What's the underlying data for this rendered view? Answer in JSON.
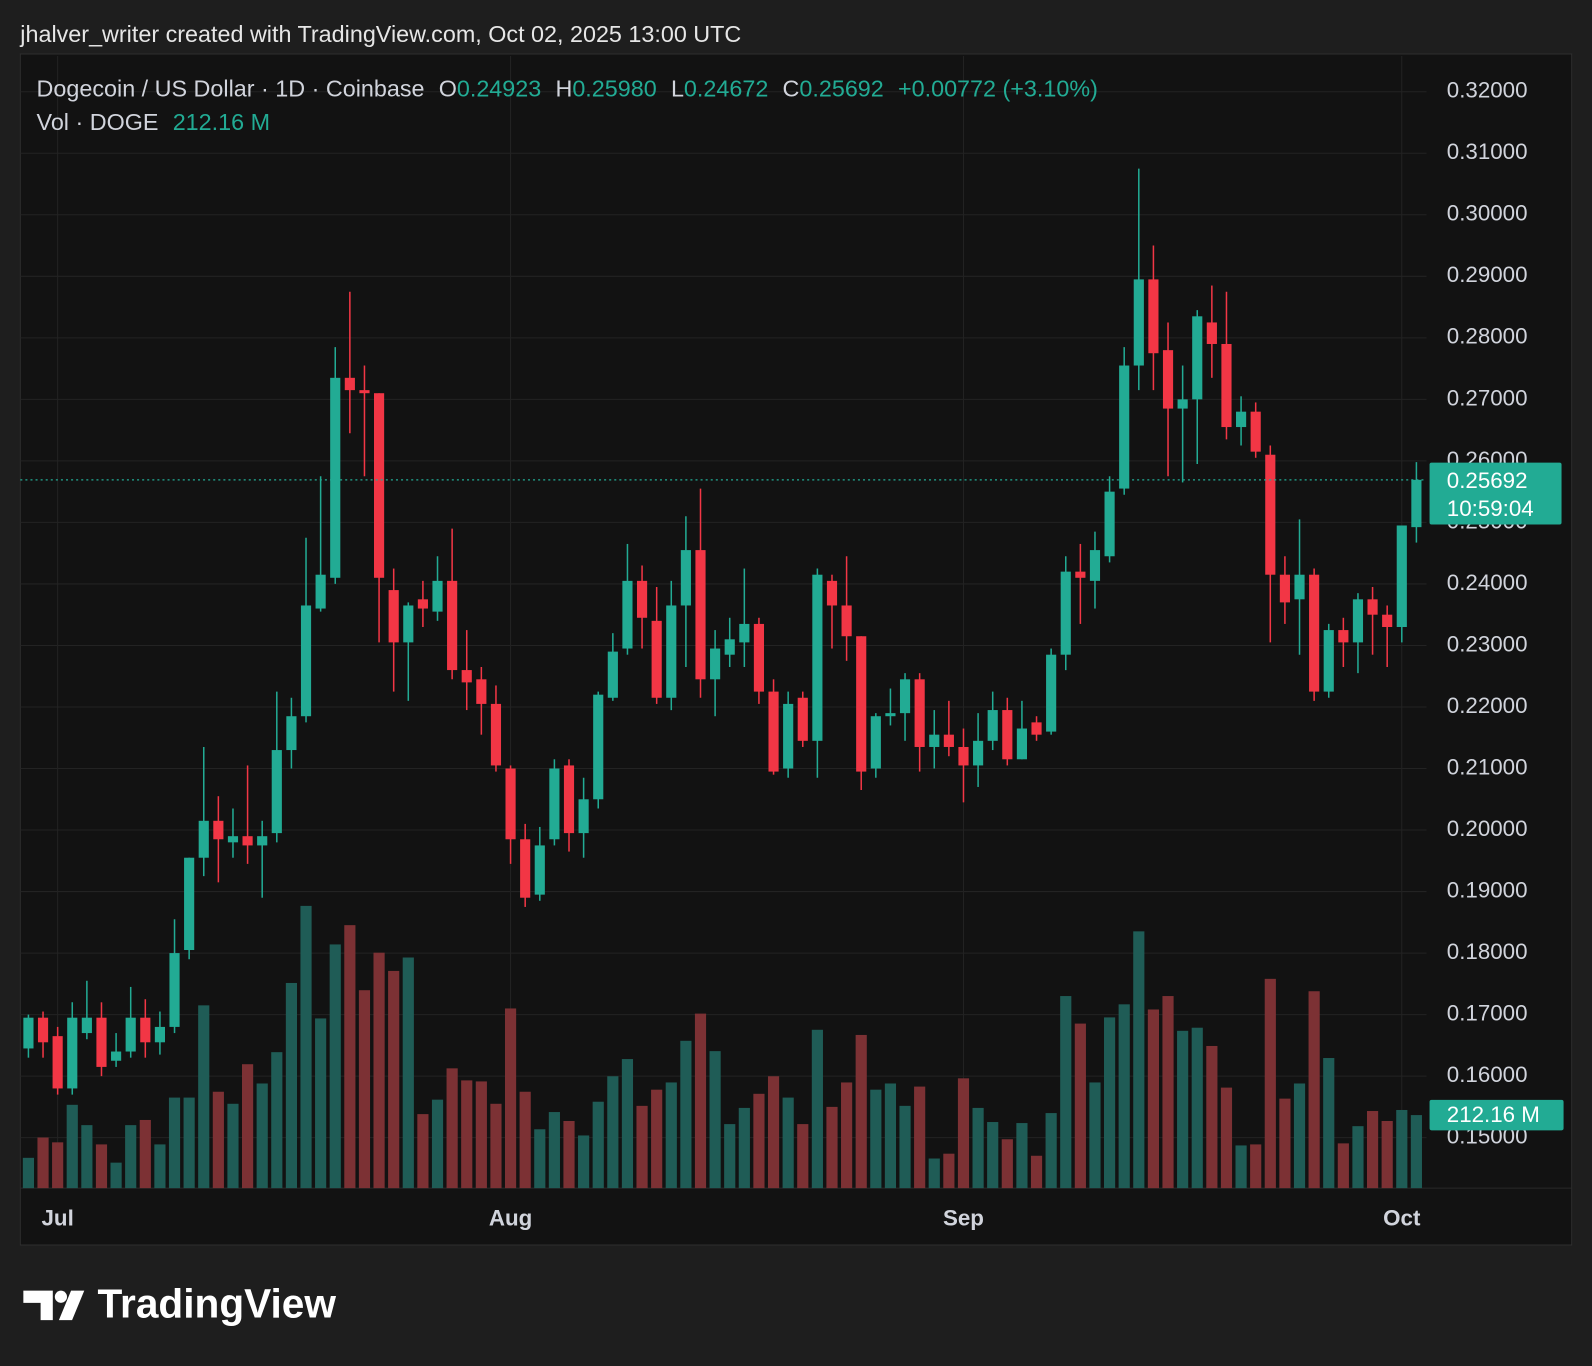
{
  "chart_data": {
    "type": "candlestick",
    "attribution": "jhalver_writer created with TradingView.com, Oct 02, 2025 13:00 UTC",
    "symbol": "Dogecoin / US Dollar · 1D · Coinbase",
    "ohlc_legend": [
      {
        "key": "O",
        "value": "0.24923"
      },
      {
        "key": "H",
        "value": "0.25980"
      },
      {
        "key": "L",
        "value": "0.24672"
      },
      {
        "key": "C",
        "value": "0.25692"
      }
    ],
    "change": "+0.00772 (+3.10%)",
    "volume_title": "Vol · DOGE",
    "volume_legend_value": "212.16 M",
    "price_tag": "0.25692",
    "countdown": "10:59:04",
    "volume_tag": "212.16 M",
    "footer_logo": "TradingView",
    "categories": [
      null,
      null,
      "Jul",
      null,
      null,
      null,
      null,
      null,
      null,
      null,
      null,
      null,
      null,
      null,
      null,
      null,
      null,
      null,
      null,
      null,
      null,
      null,
      null,
      null,
      null,
      null,
      null,
      null,
      null,
      null,
      null,
      null,
      null,
      "Aug",
      null,
      null,
      null,
      null,
      null,
      null,
      null,
      null,
      null,
      null,
      null,
      null,
      null,
      null,
      null,
      null,
      null,
      null,
      null,
      null,
      null,
      null,
      null,
      null,
      null,
      null,
      null,
      null,
      null,
      null,
      "Sep",
      null,
      null,
      null,
      null,
      null,
      null,
      null,
      null,
      null,
      null,
      null,
      null,
      null,
      null,
      null,
      null,
      null,
      null,
      null,
      null,
      null,
      null,
      null,
      null,
      null,
      null,
      null,
      null,
      null,
      "Oct",
      null
    ],
    "open": [
      0.1645,
      0.1695,
      0.1665,
      0.158,
      0.167,
      0.1695,
      0.1625,
      0.164,
      0.1695,
      0.1655,
      0.168,
      0.1805,
      0.1955,
      0.2015,
      0.198,
      0.199,
      0.1975,
      0.1995,
      0.213,
      0.2185,
      0.236,
      0.241,
      0.2735,
      0.2715,
      0.271,
      0.239,
      0.2305,
      0.2375,
      0.2355,
      0.2405,
      0.226,
      0.2245,
      0.2205,
      0.21,
      0.1985,
      0.1895,
      0.1985,
      0.2105,
      0.1995,
      0.205,
      0.2215,
      0.2295,
      0.2405,
      0.234,
      0.2215,
      0.2365,
      0.2455,
      0.2245,
      0.2285,
      0.2305,
      0.2335,
      0.2225,
      0.21,
      0.2215,
      0.2145,
      0.2405,
      0.2365,
      0.2315,
      0.21,
      0.2185,
      0.219,
      0.2245,
      0.2135,
      0.2155,
      0.2135,
      0.2105,
      0.2145,
      0.2195,
      0.2115,
      0.2175,
      0.216,
      0.2285,
      0.242,
      0.2405,
      0.2445,
      0.2555,
      0.2755,
      0.2895,
      0.278,
      0.2685,
      0.27,
      0.2825,
      0.279,
      0.2655,
      0.268,
      0.261,
      0.2415,
      0.2375,
      0.2415,
      0.2225,
      0.2325,
      0.2305,
      0.2375,
      0.235,
      0.233,
      0.24923
    ],
    "high": [
      0.17,
      0.1705,
      0.168,
      0.172,
      0.1755,
      0.172,
      0.167,
      0.1745,
      0.1725,
      0.1705,
      0.1855,
      0.1955,
      0.2135,
      0.2055,
      0.2035,
      0.2105,
      0.2015,
      0.2225,
      0.2215,
      0.2475,
      0.2575,
      0.2785,
      0.2875,
      0.2755,
      0.271,
      0.2425,
      0.237,
      0.2405,
      0.2445,
      0.249,
      0.2325,
      0.2265,
      0.2235,
      0.2105,
      0.201,
      0.2005,
      0.2115,
      0.2115,
      0.2085,
      0.2225,
      0.232,
      0.2465,
      0.243,
      0.2395,
      0.2405,
      0.251,
      0.2555,
      0.2325,
      0.2345,
      0.2425,
      0.2345,
      0.2245,
      0.2225,
      0.2225,
      0.2425,
      0.2415,
      0.2445,
      0.2315,
      0.219,
      0.223,
      0.2255,
      0.2255,
      0.2195,
      0.221,
      0.2165,
      0.219,
      0.2225,
      0.2215,
      0.221,
      0.2185,
      0.2295,
      0.2445,
      0.2465,
      0.2485,
      0.2575,
      0.2785,
      0.3075,
      0.295,
      0.2825,
      0.2755,
      0.2845,
      0.2885,
      0.2875,
      0.2705,
      0.2695,
      0.2625,
      0.2445,
      0.2505,
      0.2425,
      0.2335,
      0.2345,
      0.2385,
      0.2395,
      0.2365,
      0.2495,
      0.2598
    ],
    "low": [
      0.163,
      0.163,
      0.157,
      0.157,
      0.166,
      0.16,
      0.1615,
      0.163,
      0.163,
      0.1635,
      0.167,
      0.179,
      0.1925,
      0.1915,
      0.1955,
      0.1945,
      0.189,
      0.198,
      0.21,
      0.2175,
      0.2355,
      0.24,
      0.2645,
      0.2575,
      0.2305,
      0.2225,
      0.221,
      0.233,
      0.234,
      0.2245,
      0.2195,
      0.2155,
      0.2095,
      0.1945,
      0.1875,
      0.1885,
      0.1975,
      0.1965,
      0.1955,
      0.2035,
      0.221,
      0.2285,
      0.2295,
      0.2205,
      0.2195,
      0.2265,
      0.2215,
      0.2185,
      0.2265,
      0.2265,
      0.2205,
      0.209,
      0.2085,
      0.2135,
      0.2085,
      0.2295,
      0.2275,
      0.2065,
      0.2085,
      0.217,
      0.2145,
      0.2095,
      0.21,
      0.212,
      0.2045,
      0.207,
      0.213,
      0.2105,
      0.2115,
      0.2145,
      0.2155,
      0.226,
      0.2335,
      0.236,
      0.2435,
      0.2545,
      0.2715,
      0.2715,
      0.2575,
      0.2565,
      0.2595,
      0.2735,
      0.2635,
      0.2625,
      0.2605,
      0.2305,
      0.2335,
      0.2285,
      0.221,
      0.2215,
      0.2265,
      0.2255,
      0.2285,
      0.2265,
      0.2305,
      0.24672
    ],
    "close": [
      0.1695,
      0.1655,
      0.158,
      0.1695,
      0.1695,
      0.1615,
      0.164,
      0.1695,
      0.1655,
      0.168,
      0.18,
      0.1955,
      0.2015,
      0.1985,
      0.199,
      0.1975,
      0.199,
      0.213,
      0.2185,
      0.2365,
      0.2415,
      0.2735,
      0.2715,
      0.271,
      0.241,
      0.2305,
      0.2365,
      0.236,
      0.2405,
      0.226,
      0.224,
      0.2205,
      0.2105,
      0.1985,
      0.189,
      0.1975,
      0.21,
      0.1995,
      0.205,
      0.222,
      0.229,
      0.2405,
      0.2345,
      0.2215,
      0.2365,
      0.2455,
      0.2245,
      0.2295,
      0.231,
      0.2335,
      0.2225,
      0.2095,
      0.2205,
      0.2145,
      0.2415,
      0.2365,
      0.2315,
      0.2095,
      0.2185,
      0.219,
      0.2245,
      0.2135,
      0.2155,
      0.2135,
      0.2105,
      0.2145,
      0.2195,
      0.2115,
      0.2165,
      0.2155,
      0.2285,
      0.242,
      0.241,
      0.2455,
      0.255,
      0.2755,
      0.2895,
      0.2775,
      0.2685,
      0.27,
      0.2835,
      0.279,
      0.2655,
      0.268,
      0.2615,
      0.2415,
      0.237,
      0.2415,
      0.2225,
      0.2325,
      0.2305,
      0.2375,
      0.235,
      0.233,
      0.2495,
      0.25692
    ],
    "volume": [
      88,
      147,
      133,
      242,
      183,
      127,
      74,
      183,
      198,
      127,
      263,
      263,
      531,
      280,
      245,
      360,
      304,
      395,
      596,
      820,
      493,
      708,
      764,
      575,
      684,
      631,
      670,
      215,
      257,
      348,
      313,
      310,
      245,
      522,
      280,
      171,
      221,
      195,
      153,
      251,
      325,
      375,
      239,
      286,
      307,
      428,
      507,
      398,
      186,
      233,
      274,
      325,
      263,
      186,
      460,
      236,
      307,
      445,
      286,
      304,
      239,
      295,
      86,
      100,
      319,
      233,
      192,
      142,
      189,
      94,
      218,
      558,
      478,
      307,
      496,
      534,
      746,
      519,
      558,
      457,
      466,
      413,
      292,
      124,
      127,
      608,
      260,
      304,
      572,
      378,
      130,
      180,
      224,
      195,
      227,
      212.16
    ],
    "ylim": [
      0.1418,
      0.3258
    ],
    "yticks": [
      {
        "value": 0.15,
        "label": "0.15000"
      },
      {
        "value": 0.16,
        "label": "0.16000"
      },
      {
        "value": 0.17,
        "label": "0.17000"
      },
      {
        "value": 0.18,
        "label": "0.18000"
      },
      {
        "value": 0.19,
        "label": "0.19000"
      },
      {
        "value": 0.2,
        "label": "0.20000"
      },
      {
        "value": 0.21,
        "label": "0.21000"
      },
      {
        "value": 0.22,
        "label": "0.22000"
      },
      {
        "value": 0.23,
        "label": "0.23000"
      },
      {
        "value": 0.24,
        "label": "0.24000"
      },
      {
        "value": 0.25,
        "label": "0.25000"
      },
      {
        "value": 0.26,
        "label": "0.26000"
      },
      {
        "value": 0.27,
        "label": "0.27000"
      },
      {
        "value": 0.28,
        "label": "0.28000"
      },
      {
        "value": 0.29,
        "label": "0.29000"
      },
      {
        "value": 0.3,
        "label": "0.30000"
      },
      {
        "value": 0.31,
        "label": "0.31000"
      },
      {
        "value": 0.32,
        "label": "0.32000"
      }
    ],
    "volume_lim": [
      0,
      1000
    ],
    "grid": true,
    "up_color": "#22ab94",
    "down_color": "#f23645",
    "up_volume_color": "#1f5c56",
    "down_volume_color": "#7c3134"
  }
}
